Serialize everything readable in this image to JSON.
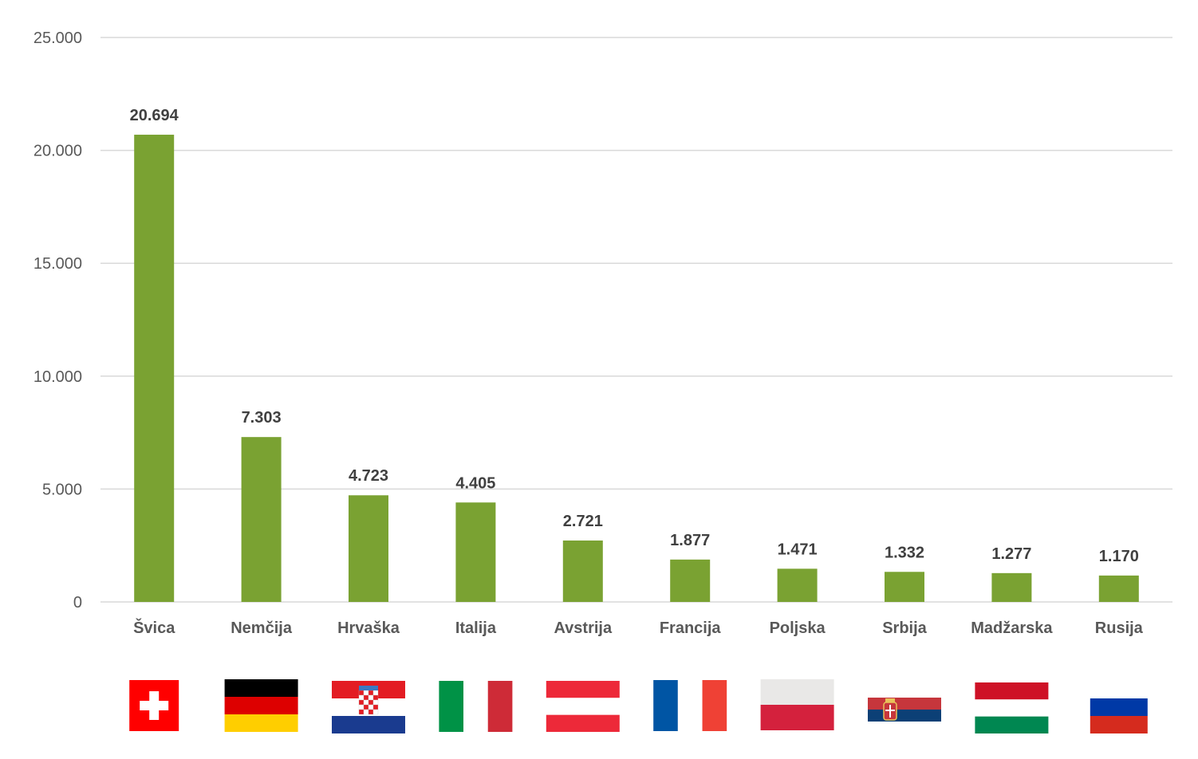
{
  "chart_data": {
    "type": "bar",
    "title": "",
    "xlabel": "",
    "ylabel": "",
    "categories": [
      "Švica",
      "Nemčija",
      "Hrvaška",
      "Italija",
      "Avstrija",
      "Francija",
      "Poljska",
      "Srbija",
      "Madžarska",
      "Rusija"
    ],
    "values": [
      20694,
      7303,
      4723,
      4405,
      2721,
      1877,
      1471,
      1332,
      1277,
      1170
    ],
    "data_labels": [
      "20.694",
      "7.303",
      "4.723",
      "4.405",
      "2.721",
      "1.877",
      "1.471",
      "1.332",
      "1.277",
      "1.170"
    ],
    "ylim": [
      0,
      25000
    ],
    "yticks": [
      0,
      5000,
      10000,
      15000,
      20000,
      25000
    ],
    "ytick_labels": [
      "0",
      "5.000",
      "10.000",
      "15.000",
      "20.000",
      "25.000"
    ],
    "grid": true,
    "bar_color": "#7aa232",
    "gridline_color": "#d9d9d9",
    "flags": [
      {
        "country": "Švica",
        "icon": "switzerland-flag-icon",
        "colors": [
          "#ff0000",
          "#ffffff"
        ]
      },
      {
        "country": "Nemčija",
        "icon": "germany-flag-icon",
        "colors": [
          "#000000",
          "#dd0000",
          "#ffce00"
        ]
      },
      {
        "country": "Hrvaška",
        "icon": "croatia-flag-icon",
        "colors": [
          "#e31c23",
          "#ffffff",
          "#1a3b8f"
        ]
      },
      {
        "country": "Italija",
        "icon": "italy-flag-icon",
        "colors": [
          "#009246",
          "#ffffff",
          "#ce2b37"
        ]
      },
      {
        "country": "Avstrija",
        "icon": "austria-flag-icon",
        "colors": [
          "#ed2939",
          "#ffffff",
          "#ed2939"
        ]
      },
      {
        "country": "Francija",
        "icon": "france-flag-icon",
        "colors": [
          "#0055a4",
          "#ffffff",
          "#ef4135"
        ]
      },
      {
        "country": "Poljska",
        "icon": "poland-flag-icon",
        "colors": [
          "#e9e8e7",
          "#d4213d"
        ]
      },
      {
        "country": "Srbija",
        "icon": "serbia-flag-icon",
        "colors": [
          "#c6363c",
          "#0c4076",
          "#ffffff"
        ]
      },
      {
        "country": "Madžarska",
        "icon": "hungary-flag-icon",
        "colors": [
          "#ce1126",
          "#ffffff",
          "#008751"
        ]
      },
      {
        "country": "Rusija",
        "icon": "russia-flag-icon",
        "colors": [
          "#ffffff",
          "#0039a6",
          "#d52b1e"
        ]
      }
    ]
  }
}
